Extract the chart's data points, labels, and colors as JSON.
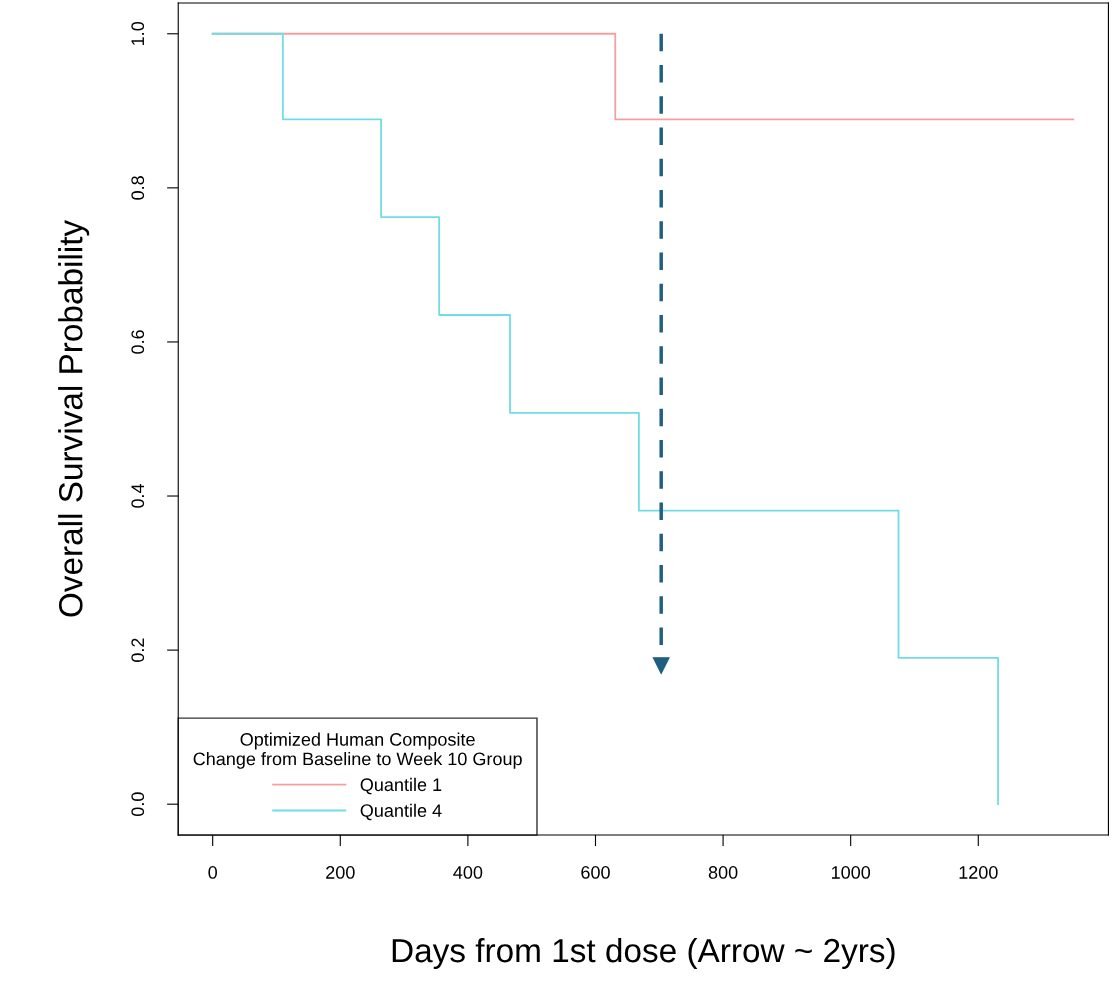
{
  "chart_data": {
    "type": "step",
    "xlabel": "Days from 1st dose (Arrow ~ 2yrs)",
    "ylabel": "Overall Survival Probability",
    "legend_title": "Optimized Human Composite\nChange from Baseline to Week 10 Group",
    "series": [
      {
        "name": "Quantile 1",
        "color": "#f4a0a0",
        "x": [
          0,
          631,
          1349
        ],
        "values": [
          1.0,
          0.889,
          0.889
        ]
      },
      {
        "name": "Quantile 4",
        "color": "#6fdde3",
        "x": [
          0,
          110,
          264,
          355,
          466,
          668,
          1075,
          1231
        ],
        "values": [
          1.0,
          0.889,
          0.762,
          0.635,
          0.508,
          0.381,
          0.19,
          0.0
        ]
      }
    ],
    "xlim": [
      -54,
      1404
    ],
    "ylim": [
      -0.04,
      1.04
    ],
    "xticks": [
      0,
      200,
      400,
      600,
      800,
      1000,
      1200
    ],
    "yticks": [
      {
        "value": 0,
        "label": "0.0"
      },
      0.2,
      0.4,
      0.6,
      0.8,
      {
        "value": 1,
        "label": "1.0"
      }
    ],
    "ref_lines": [
      {
        "axis": "x",
        "value": 703,
        "color": "#1f5f80",
        "line_style": "dashed"
      }
    ],
    "grid": false,
    "legend": "bottom left"
  }
}
